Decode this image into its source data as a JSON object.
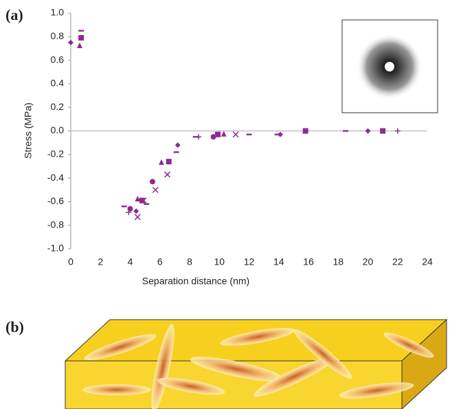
{
  "panel_labels": [
    "(a)",
    "(b)"
  ],
  "chart_data": {
    "type": "scatter",
    "xlabel": "Separation distance (nm)",
    "ylabel": "Stress (MPa)",
    "xlim": [
      0,
      24
    ],
    "xticks": [
      0,
      2,
      4,
      6,
      8,
      10,
      12,
      14,
      16,
      18,
      20,
      22,
      24
    ],
    "ylim": [
      -1,
      1
    ],
    "yticks": [
      {
        "value": -1,
        "label": "-1.0"
      },
      {
        "value": -0.8,
        "label": "-0.8"
      },
      {
        "value": -0.6,
        "label": "-0.6"
      },
      {
        "value": -0.4,
        "label": "-0.4"
      },
      {
        "value": -0.2,
        "label": "-0.2"
      },
      {
        "value": 0,
        "label": "0.0"
      },
      {
        "value": 0.2,
        "label": "0.2"
      },
      {
        "value": 0.4,
        "label": "0.4"
      },
      {
        "value": 0.6,
        "label": "0.6"
      },
      {
        "value": 0.8,
        "label": "0.8"
      },
      {
        "value": 1,
        "label": "1.0"
      }
    ],
    "series": [
      {
        "marker": "diamond",
        "color": "#8e2b8e",
        "x": [
          0,
          4.4,
          7.2,
          14.1,
          20
        ],
        "values": [
          0.75,
          -0.68,
          -0.12,
          -0.03,
          0
        ]
      },
      {
        "marker": "square",
        "color": "#8e2b8e",
        "x": [
          0.7,
          4.8,
          6.6,
          9.9,
          15.8,
          21
        ],
        "values": [
          0.79,
          -0.59,
          -0.26,
          -0.03,
          0,
          0
        ]
      },
      {
        "marker": "dash",
        "color": "#8e2b8e",
        "x": [
          0.7,
          3.6,
          5.1,
          7.1,
          8.4,
          12,
          13.9,
          18.5
        ],
        "values": [
          0.85,
          -0.64,
          -0.62,
          -0.18,
          -0.05,
          -0.03,
          -0.03,
          0
        ]
      },
      {
        "marker": "triangle",
        "color": "#8e2b8e",
        "x": [
          0.6,
          4.5,
          6.1,
          10.3
        ],
        "values": [
          0.72,
          -0.58,
          -0.27,
          -0.03
        ]
      },
      {
        "marker": "circle",
        "color": "#8e2b8e",
        "x": [
          4.0,
          5.5,
          9.6
        ],
        "values": [
          -0.66,
          -0.43,
          -0.05
        ]
      },
      {
        "marker": "cross",
        "color": "#8e2b8e",
        "x": [
          4.5,
          4.9,
          5.7,
          6.5,
          11.1
        ],
        "values": [
          -0.73,
          -0.59,
          -0.5,
          -0.37,
          -0.03
        ]
      },
      {
        "marker": "plus",
        "color": "#8e2b8e",
        "x": [
          3.9,
          8.6,
          22
        ],
        "values": [
          -0.69,
          -0.05,
          0
        ]
      }
    ]
  }
}
